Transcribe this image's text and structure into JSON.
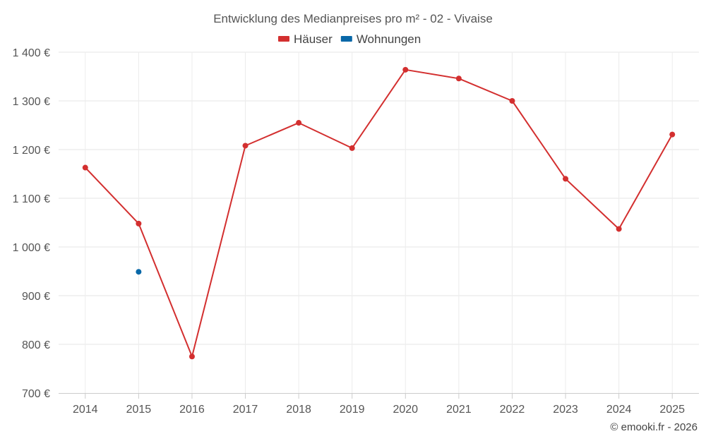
{
  "chart_data": {
    "type": "line",
    "title": "Entwicklung des Medianpreises pro m² - 02 - Vivaise",
    "categories": [
      "2014",
      "2015",
      "2016",
      "2017",
      "2018",
      "2019",
      "2020",
      "2021",
      "2022",
      "2023",
      "2024",
      "2025"
    ],
    "series": [
      {
        "name": "Häuser",
        "color": "#d32f2f",
        "values": [
          1163,
          1048,
          775,
          1208,
          1255,
          1203,
          1364,
          1346,
          1300,
          1140,
          1037,
          1231
        ]
      },
      {
        "name": "Wohnungen",
        "color": "#0868a8",
        "values": [
          null,
          949,
          null,
          null,
          null,
          null,
          null,
          null,
          null,
          null,
          null,
          null
        ]
      }
    ],
    "ylim": [
      700,
      1400
    ],
    "ytick_values": [
      700,
      800,
      900,
      1000,
      1100,
      1200,
      1300,
      1400
    ],
    "ytick_labels": [
      "700 €",
      "800 €",
      "900 €",
      "1 000 €",
      "1 100 €",
      "1 200 €",
      "1 300 €",
      "1 400 €"
    ],
    "grid": true,
    "legend_position": "top-center",
    "credit": "© emooki.fr - 2026"
  }
}
